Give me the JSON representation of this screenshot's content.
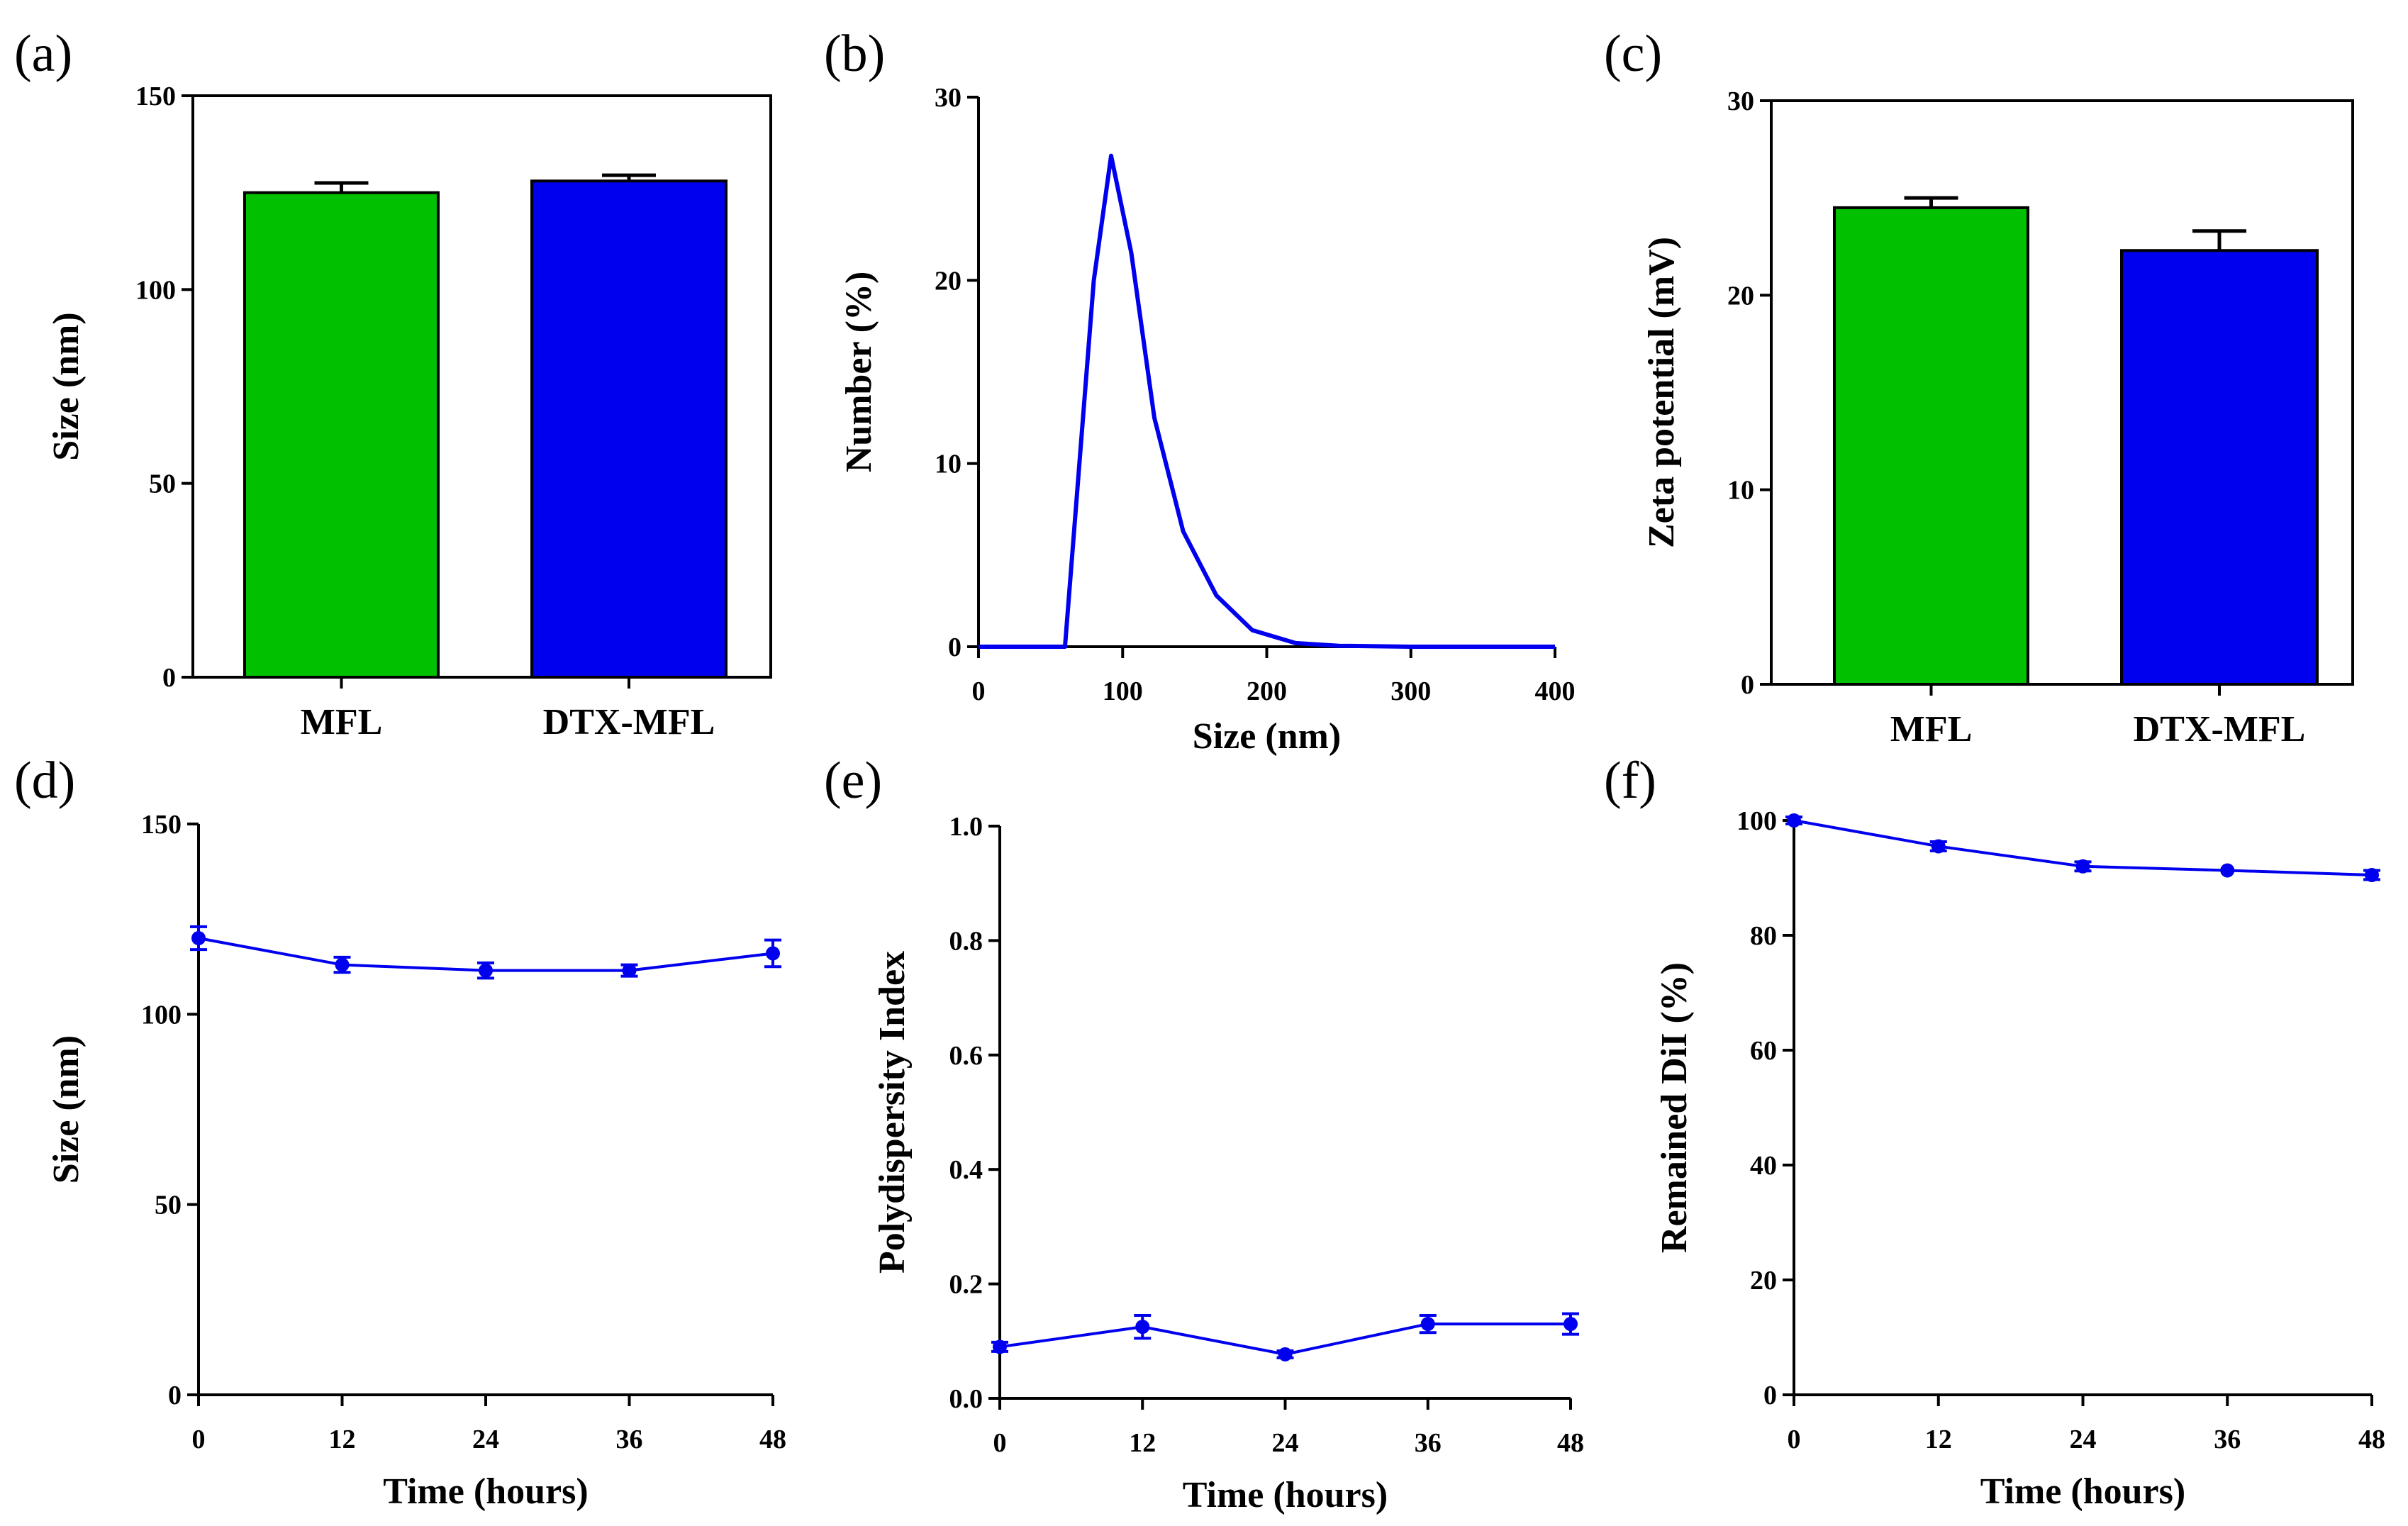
{
  "chart_data": [
    {
      "id": "a",
      "panel_label": "(a)",
      "type": "bar",
      "categories": [
        "MFL",
        "DTX-MFL"
      ],
      "values": [
        125,
        128
      ],
      "errors": [
        2.5,
        1.5
      ],
      "colors": [
        "#00c000",
        "#0000ee"
      ],
      "ylabel": "Size  (nm)",
      "xlabel": "",
      "ylim": [
        0,
        150
      ],
      "yticks": [
        0,
        50,
        100,
        150
      ],
      "ytick_labels": [
        "0",
        "50",
        "100",
        "150"
      ]
    },
    {
      "id": "b",
      "panel_label": "(b)",
      "type": "line",
      "x": [
        0,
        60,
        80,
        92,
        106,
        122,
        142,
        165,
        190,
        220,
        250,
        300,
        350,
        400
      ],
      "y": [
        0,
        0,
        20,
        26.8,
        21.5,
        12.5,
        6.3,
        2.8,
        0.9,
        0.2,
        0.05,
        0,
        0,
        0
      ],
      "color": "#0000ee",
      "xlabel": "Size  (nm)",
      "ylabel": "Number  (%)",
      "xlim": [
        0,
        400
      ],
      "ylim": [
        0,
        30
      ],
      "xticks": [
        0,
        100,
        200,
        300,
        400
      ],
      "xtick_labels": [
        "0",
        "100",
        "200",
        "300",
        "400"
      ],
      "yticks": [
        0,
        10,
        20,
        30
      ],
      "ytick_labels": [
        "0",
        "10",
        "20",
        "30"
      ]
    },
    {
      "id": "c",
      "panel_label": "(c)",
      "type": "bar",
      "categories": [
        "MFL",
        "DTX-MFL"
      ],
      "values": [
        24.5,
        22.3
      ],
      "errors": [
        0.5,
        1.0
      ],
      "colors": [
        "#00c000",
        "#0000ee"
      ],
      "ylabel": "Zeta potential (mV)",
      "xlabel": "",
      "ylim": [
        0,
        30
      ],
      "yticks": [
        0,
        10,
        20,
        30
      ],
      "ytick_labels": [
        "0",
        "10",
        "20",
        "30"
      ]
    },
    {
      "id": "d",
      "panel_label": "(d)",
      "type": "line",
      "x": [
        0,
        12,
        24,
        36,
        48
      ],
      "y": [
        120,
        113,
        111.5,
        111.5,
        116
      ],
      "errors": [
        3,
        2,
        2,
        1.5,
        3.5
      ],
      "color": "#0000ee",
      "xlabel": "Time  (hours)",
      "ylabel": "Size  (nm)",
      "xlim": [
        0,
        48
      ],
      "ylim": [
        0,
        150
      ],
      "xticks": [
        0,
        12,
        24,
        36,
        48
      ],
      "xtick_labels": [
        "0",
        "12",
        "24",
        "36",
        "48"
      ],
      "yticks": [
        0,
        50,
        100,
        150
      ],
      "ytick_labels": [
        "0",
        "50",
        "100",
        "150"
      ]
    },
    {
      "id": "e",
      "panel_label": "(e)",
      "type": "line",
      "x": [
        0,
        12,
        24,
        36,
        48
      ],
      "y": [
        0.09,
        0.125,
        0.077,
        0.13,
        0.13
      ],
      "errors": [
        0.008,
        0.02,
        0.006,
        0.015,
        0.018
      ],
      "color": "#0000ee",
      "xlabel": "Time (hours)",
      "ylabel": "Polydispersity Index",
      "xlim": [
        0,
        48
      ],
      "ylim": [
        0,
        1
      ],
      "xticks": [
        0,
        12,
        24,
        36,
        48
      ],
      "xtick_labels": [
        "0",
        "12",
        "24",
        "36",
        "48"
      ],
      "yticks": [
        0,
        0.2,
        0.4,
        0.6,
        0.8,
        1.0
      ],
      "ytick_labels": [
        "0.0",
        "0.2",
        "0.4",
        "0.6",
        "0.8",
        "1.0"
      ]
    },
    {
      "id": "f",
      "panel_label": "(f)",
      "type": "line",
      "x": [
        0,
        12,
        24,
        36,
        48
      ],
      "y": [
        100,
        95.5,
        92,
        91.3,
        90.5
      ],
      "errors": [
        0.6,
        0.8,
        0.8,
        0,
        0.8
      ],
      "color": "#0000ee",
      "xlabel": "Time  (hours)",
      "ylabel": "Remained  DiI (%)",
      "xlim": [
        0,
        48
      ],
      "ylim": [
        0,
        100
      ],
      "xticks": [
        0,
        12,
        24,
        36,
        48
      ],
      "xtick_labels": [
        "0",
        "12",
        "24",
        "36",
        "48"
      ],
      "yticks": [
        0,
        20,
        40,
        60,
        80,
        100
      ],
      "ytick_labels": [
        "0",
        "20",
        "40",
        "60",
        "80",
        "100"
      ]
    }
  ]
}
